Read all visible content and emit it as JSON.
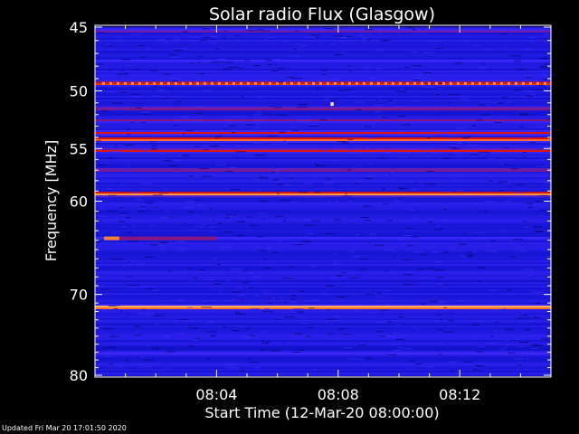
{
  "chart_data": {
    "type": "heatmap",
    "title": "Solar radio Flux (Glasgow)",
    "xlabel": "Start Time (12-Mar-20 08:00:00)",
    "ylabel": "Frequency [MHz]",
    "x_ticks": [
      "08:04",
      "08:08",
      "08:12"
    ],
    "x_tick_minutes": [
      4,
      8,
      12
    ],
    "x_range_minutes": [
      0,
      15
    ],
    "y_ticks": [
      45,
      50,
      55,
      60,
      70,
      80
    ],
    "y_scale": "log",
    "y_range_mhz": [
      45,
      80
    ],
    "colormap": [
      "#00006e",
      "#1414d2",
      "#3c28ff",
      "#7a1890",
      "#d81010",
      "#ff3c14",
      "#ff9a3a",
      "#ffffc8"
    ],
    "background_intensity": 0.18,
    "bands": [
      {
        "freq_mhz": 45.3,
        "intensity": 0.42
      },
      {
        "freq_mhz": 47.6,
        "intensity": 0.3
      },
      {
        "freq_mhz": 49.4,
        "intensity": 0.7
      },
      {
        "freq_mhz": 51.5,
        "intensity": 0.48
      },
      {
        "freq_mhz": 52.5,
        "intensity": 0.45
      },
      {
        "freq_mhz": 53.6,
        "intensity": 0.58
      },
      {
        "freq_mhz": 54.2,
        "intensity": 0.83
      },
      {
        "freq_mhz": 55.2,
        "intensity": 0.6
      },
      {
        "freq_mhz": 57.0,
        "intensity": 0.48
      },
      {
        "freq_mhz": 59.3,
        "intensity": 0.88
      },
      {
        "freq_mhz": 60.5,
        "intensity": 0.12
      },
      {
        "freq_mhz": 63.8,
        "intensity": 0.3
      },
      {
        "freq_mhz": 66.5,
        "intensity": 0.12
      },
      {
        "freq_mhz": 71.5,
        "intensity": 1.0
      },
      {
        "freq_mhz": 77.2,
        "intensity": 0.3
      }
    ],
    "bursts": [
      {
        "freq_mhz": 63.8,
        "start_min": 0.3,
        "end_min": 0.8,
        "intensity": 0.82
      },
      {
        "freq_mhz": 63.8,
        "start_min": 0.8,
        "end_min": 4.0,
        "intensity": 0.45
      },
      {
        "freq_mhz": 51.1,
        "start_min": 7.75,
        "end_min": 7.85,
        "intensity": 0.95
      }
    ]
  },
  "footer": {
    "updated": "Updated Fri Mar 20 17:01:50 2020"
  }
}
